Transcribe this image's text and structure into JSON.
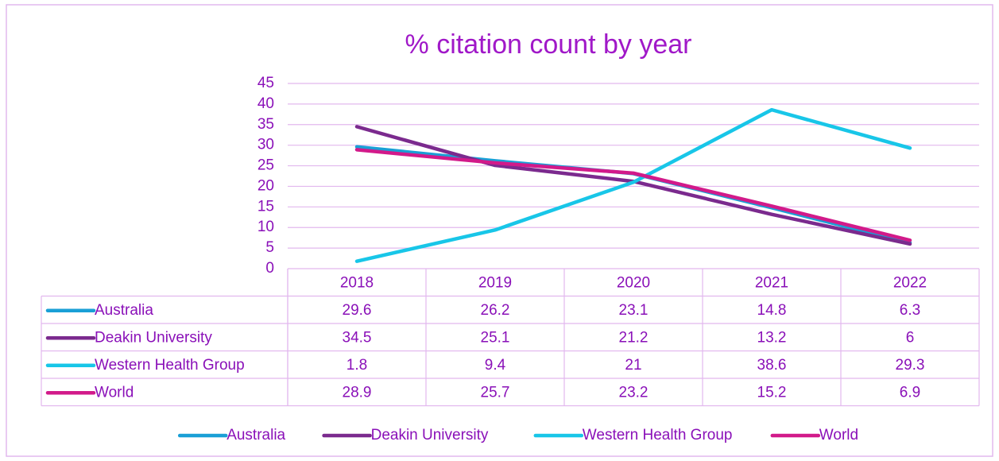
{
  "chart_data": {
    "type": "line",
    "title": "% citation count by year",
    "categories": [
      "2018",
      "2019",
      "2020",
      "2021",
      "2022"
    ],
    "series": [
      {
        "name": "Australia",
        "color": "#1a9fd6",
        "values": [
          29.6,
          26.2,
          23.1,
          14.8,
          6.3
        ]
      },
      {
        "name": "Deakin University",
        "color": "#7b2a8e",
        "values": [
          34.5,
          25.1,
          21.2,
          13.2,
          6
        ]
      },
      {
        "name": "Western Health Group",
        "color": "#18c6e8",
        "values": [
          1.8,
          9.4,
          21,
          38.6,
          29.3
        ]
      },
      {
        "name": "World",
        "color": "#d21a8a",
        "values": [
          28.9,
          25.7,
          23.2,
          15.2,
          6.9
        ]
      }
    ],
    "ylim": [
      0,
      45
    ],
    "yticks": [
      0,
      5,
      10,
      15,
      20,
      25,
      30,
      35,
      40,
      45
    ],
    "grid": true,
    "legend": "bottom"
  }
}
